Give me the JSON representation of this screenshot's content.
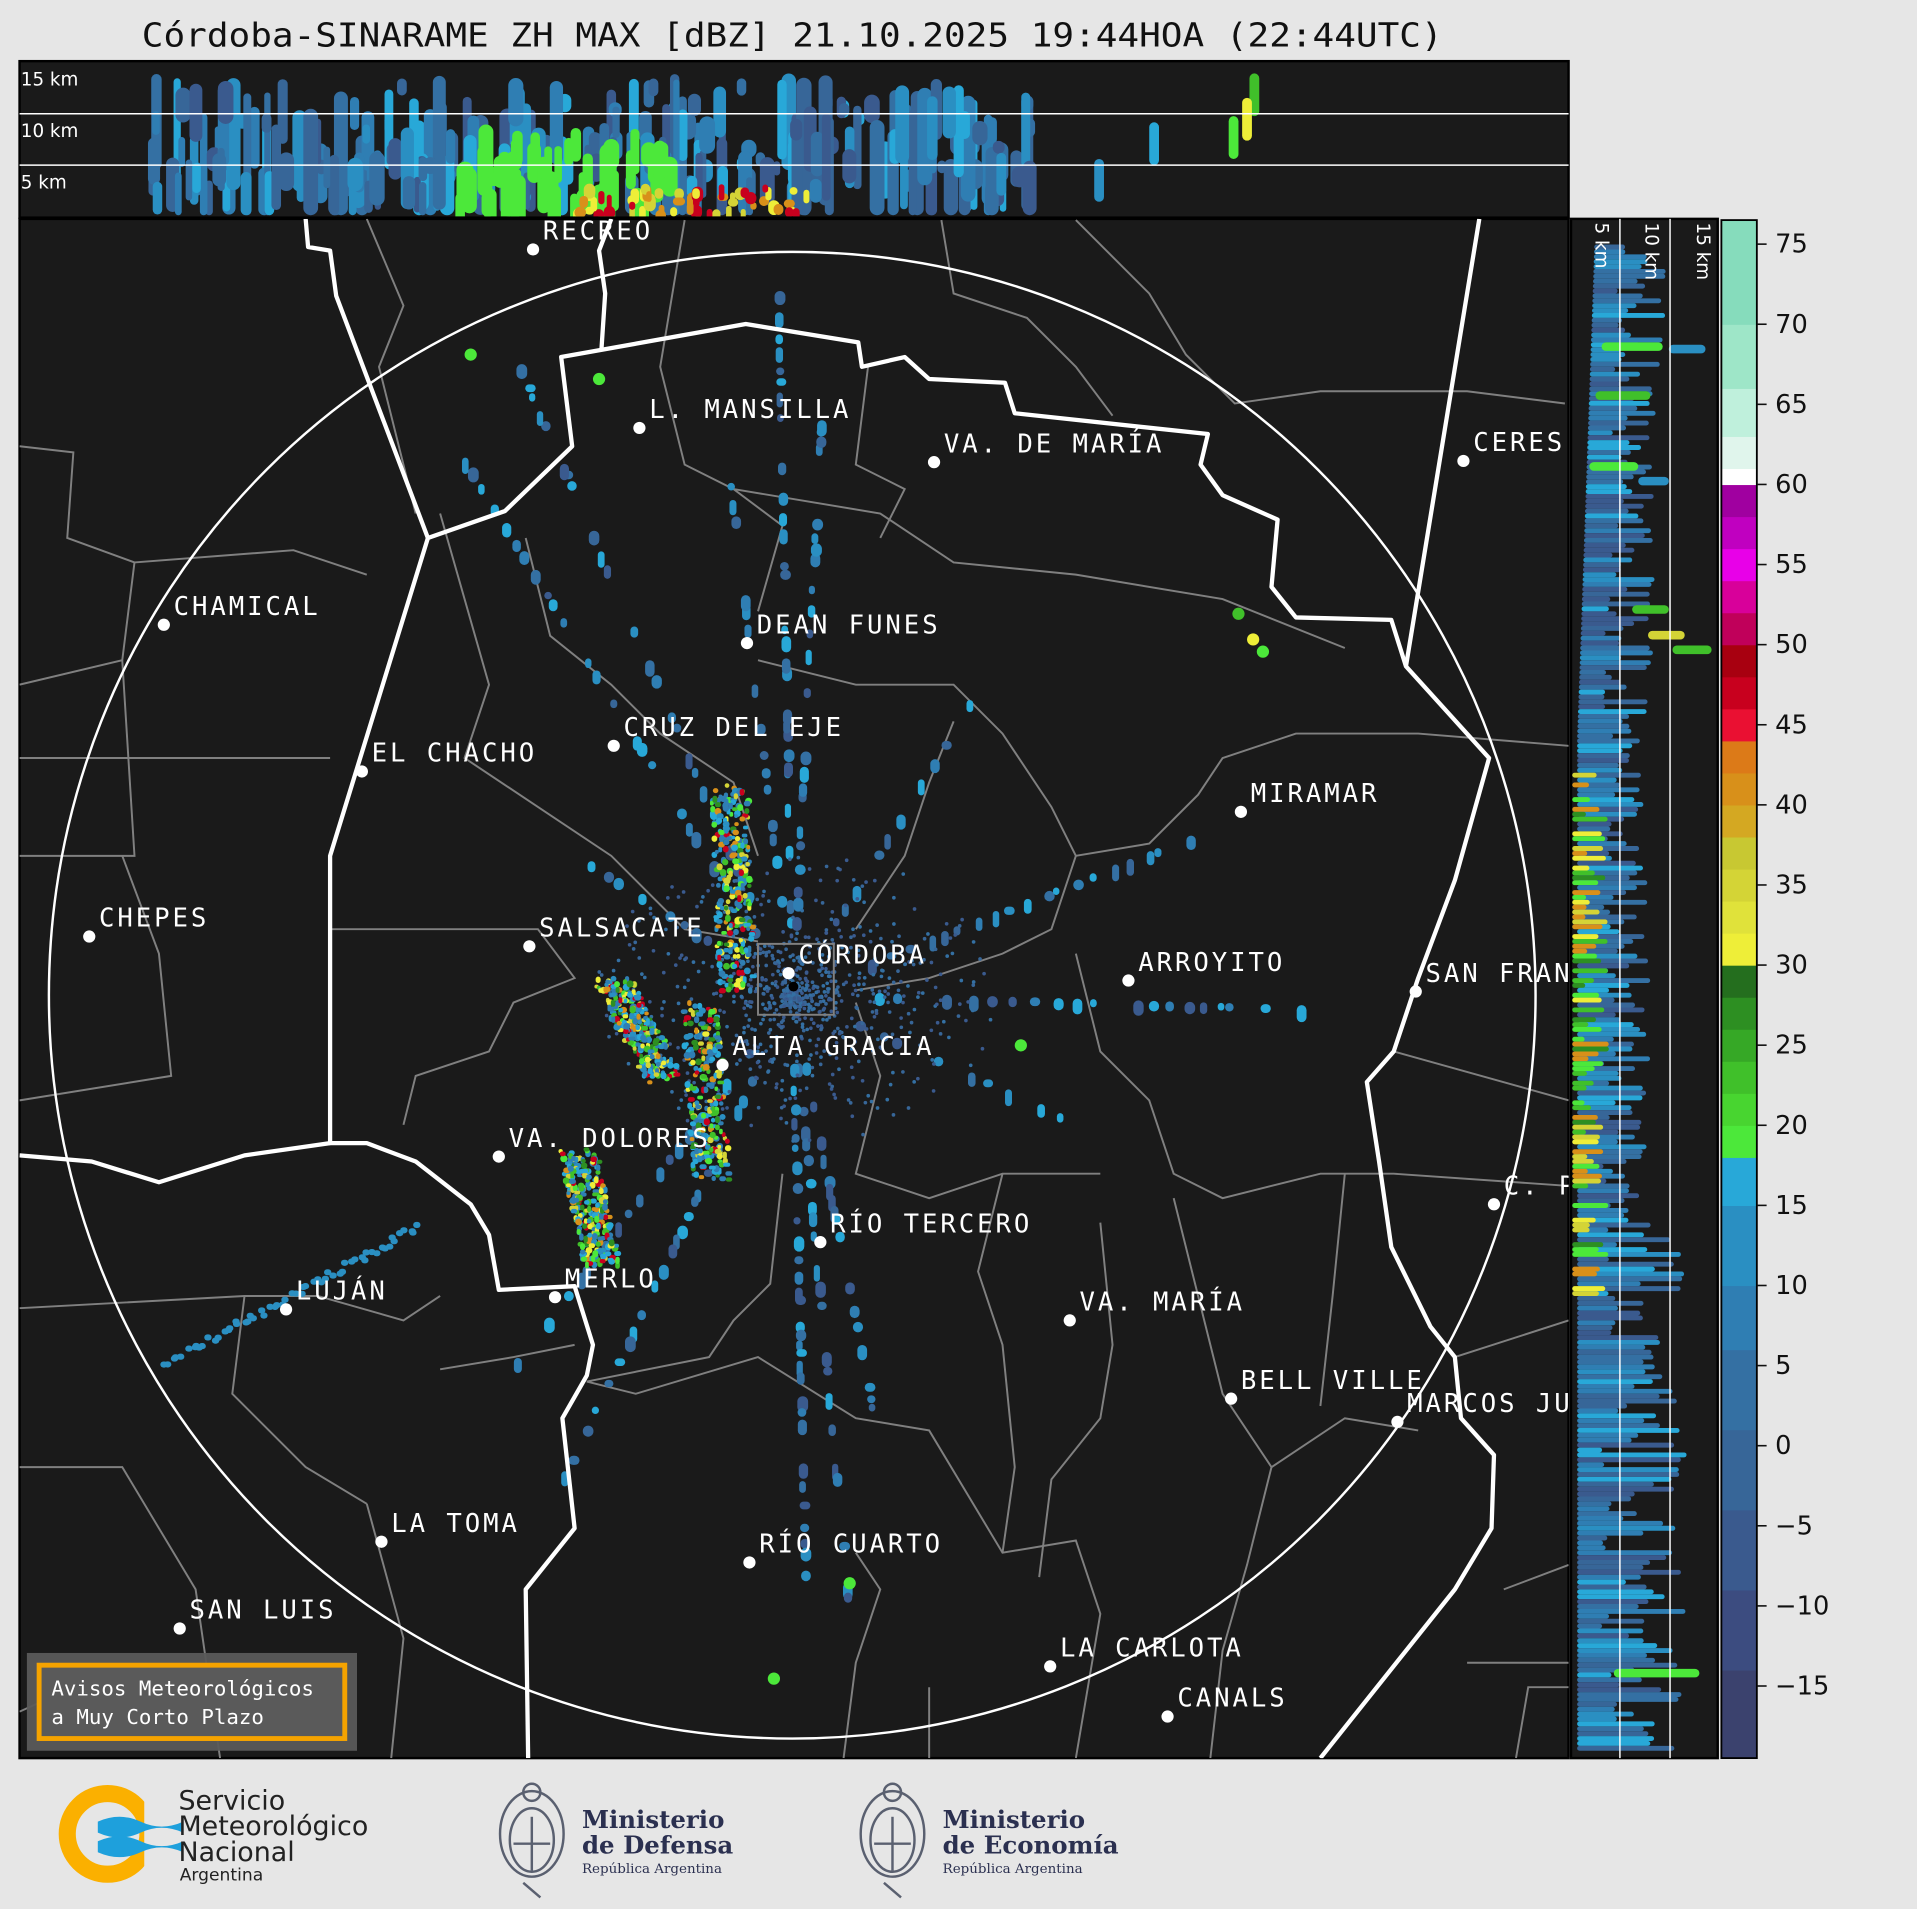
{
  "title": "Córdoba-SINARAME ZH MAX [dBZ] 21.10.2025 19:44HOA (22:44UTC)",
  "top_panel": {
    "height_labels": [
      "15 km",
      "10 km",
      "5 km"
    ]
  },
  "side_panel": {
    "height_labels": [
      "5 km",
      "10 km",
      "15 km"
    ]
  },
  "map": {
    "background": "#1a1a1a",
    "province_border_color": "#ffffff",
    "department_border_color": "#808080",
    "range_ring_color": "#ffffff",
    "cities": [
      "RECREO",
      "L. MANSILLA",
      "VA. DE MARÍA",
      "CERES",
      "CHAMICAL",
      "DEAN FUNES",
      "CRUZ DEL EJE",
      "EL CHACHO",
      "MIRAMAR",
      "CHEPES",
      "SALSACATE",
      "CÓRDOBA",
      "ARROYITO",
      "SAN FRAN",
      "ALTA GRACIA",
      "VA. DOLORES",
      "C. P",
      "RÍO TERCERO",
      "MERLO",
      "LUJÁN",
      "VA. MARÍA",
      "BELL VILLE",
      "MARCOS JU",
      "LA TOMA",
      "RÍO CUARTO",
      "SAN LUIS",
      "LA CARLOTA",
      "CANALS"
    ]
  },
  "colorbar": {
    "unit": "dBZ",
    "range": [
      -19.5,
      76.5
    ],
    "ticks": [
      "75",
      "70",
      "65",
      "60",
      "55",
      "50",
      "45",
      "40",
      "35",
      "30",
      "25",
      "20",
      "15",
      "10",
      "5",
      "0",
      "−5",
      "−10",
      "−15"
    ],
    "tick_values": [
      75,
      70,
      65,
      60,
      55,
      50,
      45,
      40,
      35,
      30,
      25,
      20,
      15,
      10,
      5,
      0,
      -5,
      -10,
      -15
    ],
    "bands": [
      [
        -19.5,
        -14,
        "#3b426e"
      ],
      [
        -14,
        -9,
        "#3c4c80"
      ],
      [
        -9,
        -4,
        "#3a5a8e"
      ],
      [
        -4,
        1,
        "#376698"
      ],
      [
        1,
        6,
        "#3470a3"
      ],
      [
        6,
        10,
        "#2f7eb3"
      ],
      [
        10,
        15,
        "#2a8fc2"
      ],
      [
        15,
        18,
        "#28a8d8"
      ],
      [
        18,
        20,
        "#4ce83a"
      ],
      [
        20,
        22,
        "#48d530"
      ],
      [
        22,
        24,
        "#40c02a"
      ],
      [
        24,
        26,
        "#36a826"
      ],
      [
        26,
        28,
        "#2d8f22"
      ],
      [
        28,
        30,
        "#246e1e"
      ],
      [
        30,
        32,
        "#eeee38"
      ],
      [
        32,
        34,
        "#e0e23a"
      ],
      [
        34,
        36,
        "#d4d436"
      ],
      [
        36,
        38,
        "#c8c832"
      ],
      [
        38,
        40,
        "#d4a822"
      ],
      [
        40,
        42,
        "#d8901a"
      ],
      [
        42,
        44,
        "#dc7a18"
      ],
      [
        44,
        46,
        "#ea1032"
      ],
      [
        46,
        48,
        "#c8001e"
      ],
      [
        48,
        50,
        "#a80010"
      ],
      [
        50,
        52,
        "#c0005a"
      ],
      [
        52,
        54,
        "#d8009a"
      ],
      [
        54,
        56,
        "#e800e8"
      ],
      [
        56,
        58,
        "#c000c0"
      ],
      [
        58,
        60,
        "#a000a0"
      ],
      [
        60,
        61,
        "#ffffff"
      ],
      [
        61,
        63,
        "#e0f5ec"
      ],
      [
        63,
        66,
        "#bff0dc"
      ],
      [
        66,
        70,
        "#9ee6c8"
      ],
      [
        70,
        76.5,
        "#86dcbc"
      ]
    ]
  },
  "notice_box": {
    "line1": "Avisos Meteorológicos",
    "line2": "a Muy Corto Plazo",
    "border_color": "#f5a300"
  },
  "footer": {
    "smn": {
      "line1": "Servicio",
      "line2": "Meteorológico",
      "line3": "Nacional",
      "line4": "Argentina",
      "icon": "smn-logo"
    },
    "defensa": {
      "line1": "Ministerio",
      "line2": "de Defensa",
      "line3": "República Argentina",
      "icon": "national-seal"
    },
    "economia": {
      "line1": "Ministerio",
      "line2": "de Economía",
      "line3": "República Argentina",
      "icon": "national-seal"
    }
  }
}
